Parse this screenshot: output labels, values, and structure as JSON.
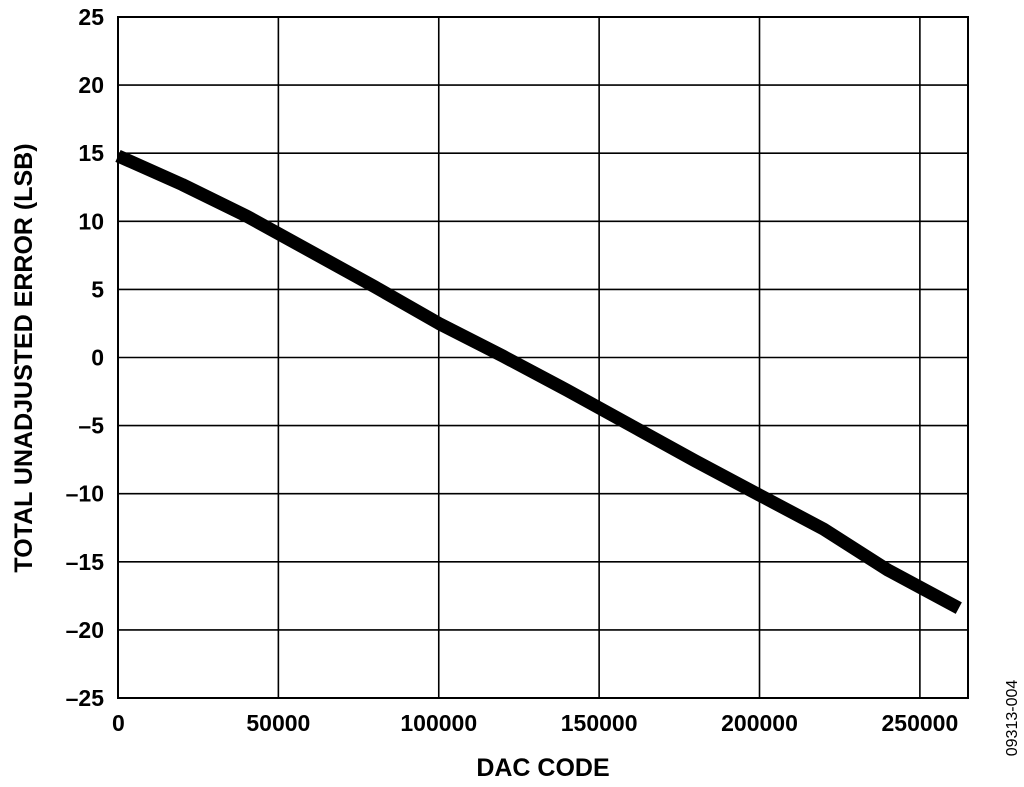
{
  "chart_data": {
    "type": "line",
    "title": "",
    "xlabel": "DAC CODE",
    "ylabel": "TOTAL UNADJUSTED ERROR (LSB)",
    "xlim": [
      0,
      265000
    ],
    "ylim": [
      -25,
      25
    ],
    "xticks": [
      {
        "value": 0,
        "label": "0"
      },
      {
        "value": 50000,
        "label": "50000"
      },
      {
        "value": 100000,
        "label": "100000"
      },
      {
        "value": 150000,
        "label": "150000"
      },
      {
        "value": 200000,
        "label": "200000"
      },
      {
        "value": 250000,
        "label": "250000"
      }
    ],
    "yticks": [
      {
        "value": 25,
        "label": "25"
      },
      {
        "value": 20,
        "label": "20"
      },
      {
        "value": 15,
        "label": "15"
      },
      {
        "value": 10,
        "label": "10"
      },
      {
        "value": 5,
        "label": "5"
      },
      {
        "value": 0,
        "label": "0"
      },
      {
        "value": -5,
        "label": "–5"
      },
      {
        "value": -10,
        "label": "–10"
      },
      {
        "value": -15,
        "label": "–15"
      },
      {
        "value": -20,
        "label": "–20"
      },
      {
        "value": -25,
        "label": "–25"
      }
    ],
    "grid": true,
    "series": [
      {
        "color": "#000000",
        "x": [
          0,
          20000,
          40000,
          60000,
          80000,
          100000,
          120000,
          140000,
          160000,
          180000,
          200000,
          220000,
          240000,
          262143
        ],
        "y": [
          14.8,
          12.7,
          10.4,
          7.8,
          5.2,
          2.5,
          0.1,
          -2.4,
          -5.0,
          -7.6,
          -10.1,
          -12.6,
          -15.6,
          -18.4
        ]
      }
    ]
  },
  "figure_id": "09313-004"
}
